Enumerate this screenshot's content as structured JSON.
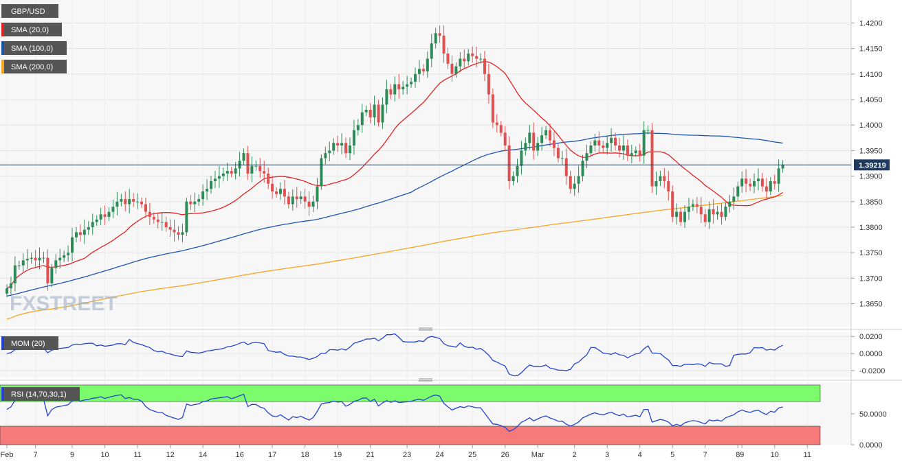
{
  "chart_data": {
    "type": "candlestick",
    "symbol": "GBP/USD",
    "current_price": "1.39219",
    "watermark": "FXSTREET",
    "price_axis": {
      "ylim": [
        1.3605,
        1.4245
      ],
      "ticks": [
        "1.3650",
        "1.3700",
        "1.3750",
        "1.3800",
        "1.3850",
        "1.3900",
        "1.3950",
        "1.4000",
        "1.4050",
        "1.4100",
        "1.4150",
        "1.4200"
      ]
    },
    "date_labels": [
      {
        "label": "Feb",
        "bar": 0
      },
      {
        "label": "7",
        "bar": 7
      },
      {
        "label": "9",
        "bar": 16
      },
      {
        "label": "10",
        "bar": 24
      },
      {
        "label": "11",
        "bar": 32
      },
      {
        "label": "12",
        "bar": 40
      },
      {
        "label": "14",
        "bar": 48
      },
      {
        "label": "16",
        "bar": 57
      },
      {
        "label": "17",
        "bar": 65
      },
      {
        "label": "18",
        "bar": 73
      },
      {
        "label": "19",
        "bar": 81
      },
      {
        "label": "21",
        "bar": 89
      },
      {
        "label": "23",
        "bar": 98
      },
      {
        "label": "24",
        "bar": 106
      },
      {
        "label": "25",
        "bar": 114
      },
      {
        "label": "26",
        "bar": 122
      },
      {
        "label": "Mar",
        "bar": 130
      },
      {
        "label": "2",
        "bar": 139
      },
      {
        "label": "3",
        "bar": 147
      },
      {
        "label": "4",
        "bar": 155
      },
      {
        "label": "5",
        "bar": 163
      },
      {
        "label": "7",
        "bar": 171
      },
      {
        "label": "8",
        "bar": 179
      },
      {
        "label": "9",
        "bar": 180
      },
      {
        "label": "10",
        "bar": 188
      },
      {
        "label": "11",
        "bar": 196
      }
    ],
    "close": [
      1.368,
      1.369,
      1.3725,
      1.3725,
      1.3735,
      1.3738,
      1.374,
      1.3735,
      1.374,
      1.374,
      1.369,
      1.372,
      1.3735,
      1.374,
      1.3745,
      1.375,
      1.378,
      1.379,
      1.3785,
      1.3795,
      1.38,
      1.381,
      1.3815,
      1.3825,
      1.382,
      1.383,
      1.384,
      1.385,
      1.3855,
      1.3845,
      1.3855,
      1.385,
      1.385,
      1.3845,
      1.383,
      1.382,
      1.3815,
      1.381,
      1.381,
      1.38,
      1.3795,
      1.379,
      1.3785,
      1.379,
      1.385,
      1.3845,
      1.385,
      1.3855,
      1.387,
      1.3875,
      1.389,
      1.3895,
      1.39,
      1.3905,
      1.391,
      1.3905,
      1.3915,
      1.393,
      1.3945,
      1.3905,
      1.392,
      1.392,
      1.391,
      1.3905,
      1.3885,
      1.387,
      1.3865,
      1.3875,
      1.386,
      1.3845,
      1.386,
      1.3855,
      1.386,
      1.385,
      1.384,
      1.385,
      1.388,
      1.3935,
      1.3945,
      1.395,
      1.3965,
      1.396,
      1.3965,
      1.3945,
      1.396,
      1.399,
      1.4,
      1.4025,
      1.403,
      1.4015,
      1.404,
      1.4005,
      1.404,
      1.407,
      1.406,
      1.408,
      1.407,
      1.4075,
      1.408,
      1.4085,
      1.41,
      1.411,
      1.4105,
      1.413,
      1.416,
      1.418,
      1.4175,
      1.414,
      1.412,
      1.41,
      1.4115,
      1.413,
      1.4125,
      1.414,
      1.4135,
      1.413,
      1.413,
      1.41,
      1.406,
      1.4005,
      1.4,
      1.3985,
      1.396,
      1.389,
      1.39,
      1.392,
      1.395,
      1.3965,
      1.3985,
      1.395,
      1.3965,
      1.398,
      1.399,
      1.397,
      1.3955,
      1.3935,
      1.3935,
      1.39,
      1.3875,
      1.3885,
      1.39,
      1.393,
      1.3945,
      1.396,
      1.397,
      1.396,
      1.3955,
      1.3965,
      1.3975,
      1.396,
      1.395,
      1.396,
      1.394,
      1.3945,
      1.395,
      1.394,
      1.399,
      1.399,
      1.388,
      1.389,
      1.39,
      1.389,
      1.387,
      1.382,
      1.383,
      1.381,
      1.383,
      1.384,
      1.3845,
      1.384,
      1.3825,
      1.381,
      1.3835,
      1.3825,
      1.383,
      1.382,
      1.384,
      1.385,
      1.386,
      1.388,
      1.3895,
      1.3885,
      1.388,
      1.389,
      1.3895,
      1.388,
      1.387,
      1.389,
      1.3885,
      1.3915,
      1.3922
    ]
  },
  "indicators": {
    "sma20_label": "SMA (20,0)",
    "sma100_label": "SMA (100,0)",
    "sma200_label": "SMA (200,0)",
    "mom": {
      "label": "MOM (20)",
      "ticks": [
        "0.0200",
        "0.0000",
        "-0.0200"
      ],
      "ylim": [
        -0.028,
        0.025
      ]
    },
    "rsi": {
      "label": "RSI (14,70,30,1)",
      "ticks": [
        "50.0000",
        "0.0000"
      ],
      "ylim": [
        0,
        100
      ]
    }
  },
  "colors": {
    "bull": "#2e8b57",
    "bear": "#e05050",
    "sma20": "#e32222",
    "sma100": "#1c54b0",
    "sma200": "#f5a623",
    "mom_line": "#2244cc",
    "rsi_line": "#2244cc",
    "rsi_overbought": "#7cfc6c",
    "rsi_oversold": "#f77a7a",
    "current_price_bg": "#1f3a5f"
  }
}
